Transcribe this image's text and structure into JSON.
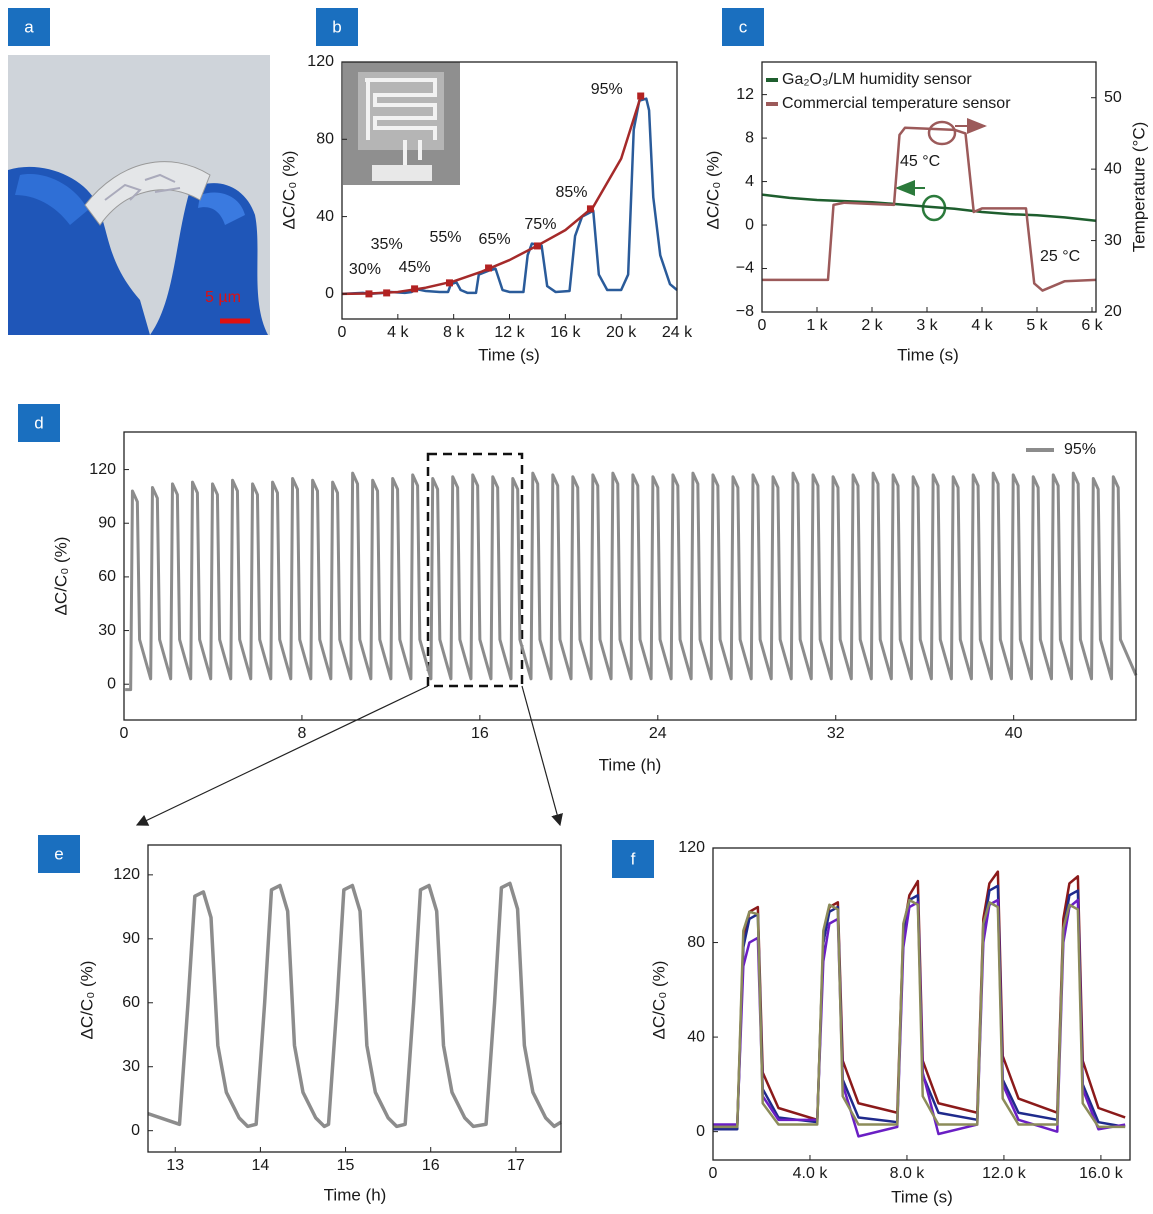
{
  "panel_labels": [
    "a",
    "b",
    "c",
    "d",
    "e",
    "f"
  ],
  "image_a": {
    "scale_bar": "5 µm"
  },
  "chart_data": [
    {
      "type": "line",
      "xlabel": "Time (s)",
      "ylabel": "ΔC/C₀ (%)",
      "xlim": [
        0,
        24000
      ],
      "ylim": [
        -13,
        120
      ],
      "xticks": [
        0,
        {
          "value": 4000,
          "label": "4 k"
        },
        {
          "value": 8000,
          "label": "8 k"
        },
        {
          "value": 12000,
          "label": "12 k"
        },
        {
          "value": 16000,
          "label": "16 k"
        },
        {
          "value": 20000,
          "label": "20 k"
        },
        {
          "value": 24000,
          "label": "24 k"
        }
      ],
      "yticks": [
        0,
        40,
        80,
        120
      ],
      "series": [
        {
          "color": "#2a5b9a",
          "x": [
            0,
            1500,
            2000,
            3000,
            3500,
            4500,
            5000,
            5300,
            6000,
            7000,
            7600,
            7800,
            8200,
            8500,
            9000,
            9600,
            9800,
            10500,
            11000,
            11500,
            12000,
            13000,
            13300,
            13600,
            14300,
            14700,
            15300,
            16300,
            16700,
            17200,
            18000,
            18400,
            19000,
            20000,
            20500,
            20900,
            21300,
            21800,
            22000,
            22300,
            22800,
            23500,
            24000
          ],
          "values": [
            0,
            0.5,
            0,
            0.5,
            1,
            0.5,
            1,
            2.5,
            1.5,
            1,
            1,
            5,
            6,
            2,
            0.5,
            0.5,
            10,
            12,
            13,
            2,
            1,
            1,
            20,
            26,
            25,
            4,
            1,
            1.5,
            30,
            40,
            43,
            10,
            2,
            2,
            10,
            85,
            100,
            101,
            95,
            50,
            20,
            5,
            2
          ]
        },
        {
          "color": "#a52a2a",
          "x": [
            0,
            2000,
            4000,
            6000,
            8000,
            10000,
            12000,
            14000,
            16000,
            18000,
            20000,
            21400
          ],
          "values": [
            0,
            0.2,
            1,
            3.2,
            6.5,
            11.5,
            17.5,
            25,
            33,
            45,
            70,
            102
          ]
        }
      ],
      "markers": {
        "color": "#b22222",
        "x": [
          1930,
          3200,
          5200,
          7700,
          10500,
          14000,
          17800,
          21400
        ],
        "values": [
          0,
          0.5,
          2.6,
          5.7,
          13.4,
          24.8,
          44,
          102.4
        ],
        "labels": [
          "30%",
          "35%",
          "45%",
          "55%",
          "65%",
          "75%",
          "85%",
          "95%"
        ]
      }
    },
    {
      "type": "line",
      "xlabel": "Time (s)",
      "ylabel": "ΔC/C₀ (%)",
      "y2label": "Temperature (°C)",
      "xlim": [
        0,
        6073
      ],
      "ylim": [
        -8,
        15
      ],
      "y2lim": [
        20,
        55
      ],
      "xticks": [
        0,
        {
          "value": 1000,
          "label": "1 k"
        },
        {
          "value": 2000,
          "label": "2 k"
        },
        {
          "value": 3000,
          "label": "3 k"
        },
        {
          "value": 4000,
          "label": "4 k"
        },
        {
          "value": 5000,
          "label": "5 k"
        },
        {
          "value": 6000,
          "label": "6 k"
        }
      ],
      "yticks": [
        {
          "value": -8,
          "label": "−8"
        },
        {
          "value": -4,
          "label": "−4"
        },
        0,
        4,
        8,
        12
      ],
      "y2ticks": [
        20,
        30,
        40,
        50
      ],
      "legend": "upper left",
      "annotations": [
        "45 °C",
        "25 °C"
      ],
      "series": [
        {
          "name": "Ga₂O₃/LM humidity sensor",
          "color": "#1e5e2e",
          "x": [
            0,
            500,
            1000,
            1500,
            2000,
            2500,
            3000,
            3500,
            4000,
            4500,
            5000,
            5500,
            6070
          ],
          "values": [
            2.8,
            2.5,
            2.3,
            2.2,
            2.1,
            1.9,
            1.7,
            1.5,
            1.2,
            1,
            0.9,
            0.7,
            0.4
          ]
        },
        {
          "name": "Commercial temperature sensor",
          "color": "#9c5a5a",
          "axis": "y2",
          "x": [
            0,
            1200,
            1300,
            1500,
            2400,
            2500,
            2600,
            3500,
            3700,
            3850,
            4000,
            4800,
            4950,
            5100,
            5500,
            6070
          ],
          "values": [
            24.5,
            24.5,
            35,
            35.3,
            35,
            44.8,
            45.8,
            45.5,
            45,
            34,
            34.5,
            34.5,
            24,
            23,
            24.3,
            24.5
          ]
        }
      ]
    },
    {
      "type": "line",
      "xlabel": "Time (h)",
      "ylabel": "ΔC/C₀ (%)",
      "xlim": [
        0,
        45.5
      ],
      "ylim": [
        -20,
        141
      ],
      "xticks": [
        0,
        8,
        16,
        24,
        32,
        40
      ],
      "yticks": [
        0,
        30,
        60,
        90,
        120
      ],
      "legend": "upper right",
      "series": [
        {
          "name": "95%",
          "color": "#8c8c8c",
          "x": [
            0.05,
            0.3,
            0.38,
            0.6,
            0.7,
            1.2,
            1.28,
            1.5,
            1.6,
            2.1,
            2.18,
            2.4,
            2.5,
            3,
            3.08,
            3.3,
            3.4,
            3.9,
            3.98,
            4.2,
            4.3,
            4.8,
            4.88,
            5.1,
            5.2,
            5.7,
            5.78,
            6,
            6.1,
            6.6,
            6.68,
            6.9,
            7,
            7.5,
            7.58,
            7.8,
            7.9,
            8.4,
            8.48,
            8.7,
            8.8,
            9.3,
            9.38,
            9.6,
            9.7,
            10.2,
            10.28,
            10.5,
            10.6,
            11.1,
            11.18,
            11.4,
            11.5,
            12,
            12.08,
            12.3,
            12.4,
            12.9,
            12.98,
            13.2,
            13.3,
            13.8,
            13.88,
            14.1,
            14.2,
            14.7,
            14.78,
            15,
            15.1,
            15.6,
            15.68,
            15.9,
            16,
            16.5,
            16.58,
            16.8,
            16.9,
            17.4,
            17.48,
            17.7,
            17.8,
            18.3,
            18.38,
            18.6,
            18.7,
            19.2,
            19.28,
            19.5,
            19.6,
            20.1,
            20.18,
            20.4,
            20.5,
            21,
            21.08,
            21.3,
            21.4,
            21.9,
            21.98,
            22.2,
            22.3,
            22.8,
            22.88,
            23.1,
            23.2,
            23.7,
            23.78,
            24,
            24.1,
            24.6,
            24.68,
            24.9,
            25,
            25.5,
            25.58,
            25.8,
            25.9,
            26.4,
            26.48,
            26.7,
            26.8,
            27.3,
            27.38,
            27.6,
            27.7,
            28.2,
            28.28,
            28.5,
            28.6,
            29.1,
            29.18,
            29.4,
            29.5,
            30,
            30.08,
            30.3,
            30.4,
            30.9,
            30.98,
            31.2,
            31.3,
            31.8,
            31.88,
            32.1,
            32.2,
            32.7,
            32.78,
            33,
            33.1,
            33.6,
            33.68,
            33.9,
            34,
            34.5,
            34.58,
            34.8,
            34.9,
            35.4,
            35.48,
            35.7,
            35.8,
            36.3,
            36.38,
            36.6,
            36.7,
            37.2,
            37.28,
            37.5,
            37.6,
            38.1,
            38.18,
            38.4,
            38.5,
            39,
            39.08,
            39.3,
            39.4,
            39.9,
            39.98,
            40.2,
            40.3,
            40.8,
            40.88,
            41.1,
            41.2,
            41.7,
            41.78,
            42,
            42.1,
            42.6,
            42.68,
            42.9,
            43,
            43.5,
            43.58,
            43.8,
            43.9,
            44.4,
            44.48,
            44.7,
            44.8,
            45.5
          ],
          "values": [
            -3,
            -3,
            108,
            102,
            25,
            3,
            110,
            104,
            25,
            3,
            112,
            106,
            25,
            3,
            113,
            107,
            25,
            3,
            112,
            106,
            25,
            3,
            114,
            108,
            25,
            3,
            112,
            106,
            25,
            3,
            113,
            107,
            25,
            3,
            115,
            109,
            25,
            3,
            114,
            108,
            25,
            3,
            113,
            107,
            25,
            3,
            118,
            112,
            25,
            3,
            114,
            108,
            25,
            3,
            115,
            109,
            25,
            3,
            117,
            111,
            25,
            3,
            115,
            109,
            25,
            3,
            116,
            110,
            25,
            3,
            117,
            111,
            25,
            3,
            116,
            110,
            25,
            3,
            115,
            109,
            25,
            3,
            118,
            112,
            25,
            3,
            117,
            111,
            25,
            3,
            116,
            110,
            25,
            3,
            117,
            111,
            25,
            3,
            118,
            112,
            25,
            3,
            117,
            111,
            25,
            3,
            116,
            110,
            25,
            3,
            117,
            111,
            25,
            3,
            118,
            112,
            25,
            3,
            117,
            111,
            25,
            3,
            116,
            110,
            25,
            3,
            117,
            111,
            25,
            3,
            116,
            110,
            25,
            3,
            118,
            112,
            25,
            3,
            117,
            111,
            25,
            3,
            116,
            110,
            25,
            3,
            117,
            111,
            25,
            3,
            118,
            112,
            25,
            3,
            117,
            111,
            25,
            3,
            116,
            110,
            25,
            3,
            117,
            111,
            25,
            3,
            116,
            110,
            25,
            3,
            117,
            111,
            25,
            3,
            118,
            112,
            25,
            3,
            117,
            111,
            25,
            3,
            116,
            110,
            25,
            3,
            117,
            111,
            25,
            3,
            118,
            112,
            25,
            3,
            115,
            109,
            25,
            3,
            116,
            110,
            25,
            5
          ]
        }
      ]
    },
    {
      "type": "line",
      "xlabel": "Time (h)",
      "ylabel": "ΔC/C₀ (%)",
      "xlim": [
        12.68,
        17.53
      ],
      "ylim": [
        -10,
        134
      ],
      "xticks": [
        13,
        14,
        15,
        16,
        17
      ],
      "yticks": [
        0,
        30,
        60,
        90,
        120
      ],
      "series": [
        {
          "color": "#8c8c8c",
          "x": [
            12.68,
            13.05,
            13.15,
            13.23,
            13.33,
            13.42,
            13.5,
            13.6,
            13.75,
            13.85,
            13.95,
            14.05,
            14.13,
            14.23,
            14.32,
            14.4,
            14.5,
            14.65,
            14.75,
            14.8,
            14.9,
            14.98,
            15.08,
            15.17,
            15.25,
            15.35,
            15.5,
            15.6,
            15.7,
            15.8,
            15.88,
            15.98,
            16.07,
            16.15,
            16.25,
            16.4,
            16.5,
            16.65,
            16.75,
            16.83,
            16.93,
            17.02,
            17.1,
            17.2,
            17.35,
            17.45,
            17.53
          ],
          "values": [
            8,
            3,
            60,
            110,
            112,
            100,
            40,
            18,
            6,
            2,
            3,
            60,
            113,
            115,
            103,
            40,
            18,
            6,
            2,
            3,
            60,
            113,
            115,
            103,
            40,
            18,
            6,
            2,
            3,
            60,
            113,
            115,
            103,
            40,
            18,
            6,
            2,
            3,
            60,
            114,
            116,
            104,
            40,
            18,
            6,
            2,
            4
          ]
        }
      ]
    },
    {
      "type": "line",
      "xlabel": "Time (s)",
      "ylabel": "ΔC/C₀ (%)",
      "xlim": [
        0,
        17200
      ],
      "ylim": [
        -12,
        120
      ],
      "xticks": [
        0,
        {
          "value": 4000,
          "label": "4.0 k"
        },
        {
          "value": 8000,
          "label": "8.0 k"
        },
        {
          "value": 12000,
          "label": "12.0 k"
        },
        {
          "value": 16000,
          "label": "16.0 k"
        }
      ],
      "yticks": [
        0,
        40,
        80,
        120
      ],
      "x": [
        0,
        1000,
        1250,
        1500,
        1850,
        2050,
        2700,
        4300,
        4550,
        4800,
        5150,
        5350,
        6000,
        7600,
        7850,
        8100,
        8450,
        8650,
        9300,
        10900,
        11150,
        11400,
        11750,
        11950,
        12600,
        14200,
        14450,
        14700,
        15050,
        15250,
        15900,
        17000
      ],
      "series": [
        {
          "color": "#8b1a1a",
          "values": [
            2,
            2,
            80,
            93,
            95,
            25,
            10,
            5,
            80,
            95,
            97,
            30,
            12,
            8,
            85,
            100,
            106,
            30,
            12,
            8,
            90,
            105,
            110,
            32,
            14,
            8,
            90,
            105,
            108,
            30,
            10,
            6
          ]
        },
        {
          "color": "#1f2a8c",
          "values": [
            1,
            1,
            78,
            90,
            92,
            18,
            6,
            4,
            80,
            93,
            95,
            22,
            6,
            4,
            82,
            98,
            100,
            24,
            8,
            5,
            85,
            102,
            104,
            22,
            8,
            5,
            85,
            100,
            102,
            20,
            4,
            2
          ]
        },
        {
          "color": "#6a1fc4",
          "values": [
            3,
            3,
            70,
            80,
            82,
            15,
            5,
            5,
            72,
            88,
            90,
            20,
            -2,
            2,
            78,
            95,
            97,
            25,
            -1,
            3,
            80,
            96,
            98,
            20,
            5,
            0,
            80,
            95,
            98,
            18,
            1,
            3
          ]
        },
        {
          "color": "#8c8c5a",
          "values": [
            2,
            2,
            85,
            93,
            92,
            12,
            3,
            3,
            85,
            96,
            94,
            15,
            3,
            3,
            88,
            98,
            96,
            15,
            3,
            3,
            88,
            97,
            95,
            14,
            3,
            3,
            86,
            96,
            94,
            12,
            2,
            2
          ]
        }
      ]
    }
  ]
}
